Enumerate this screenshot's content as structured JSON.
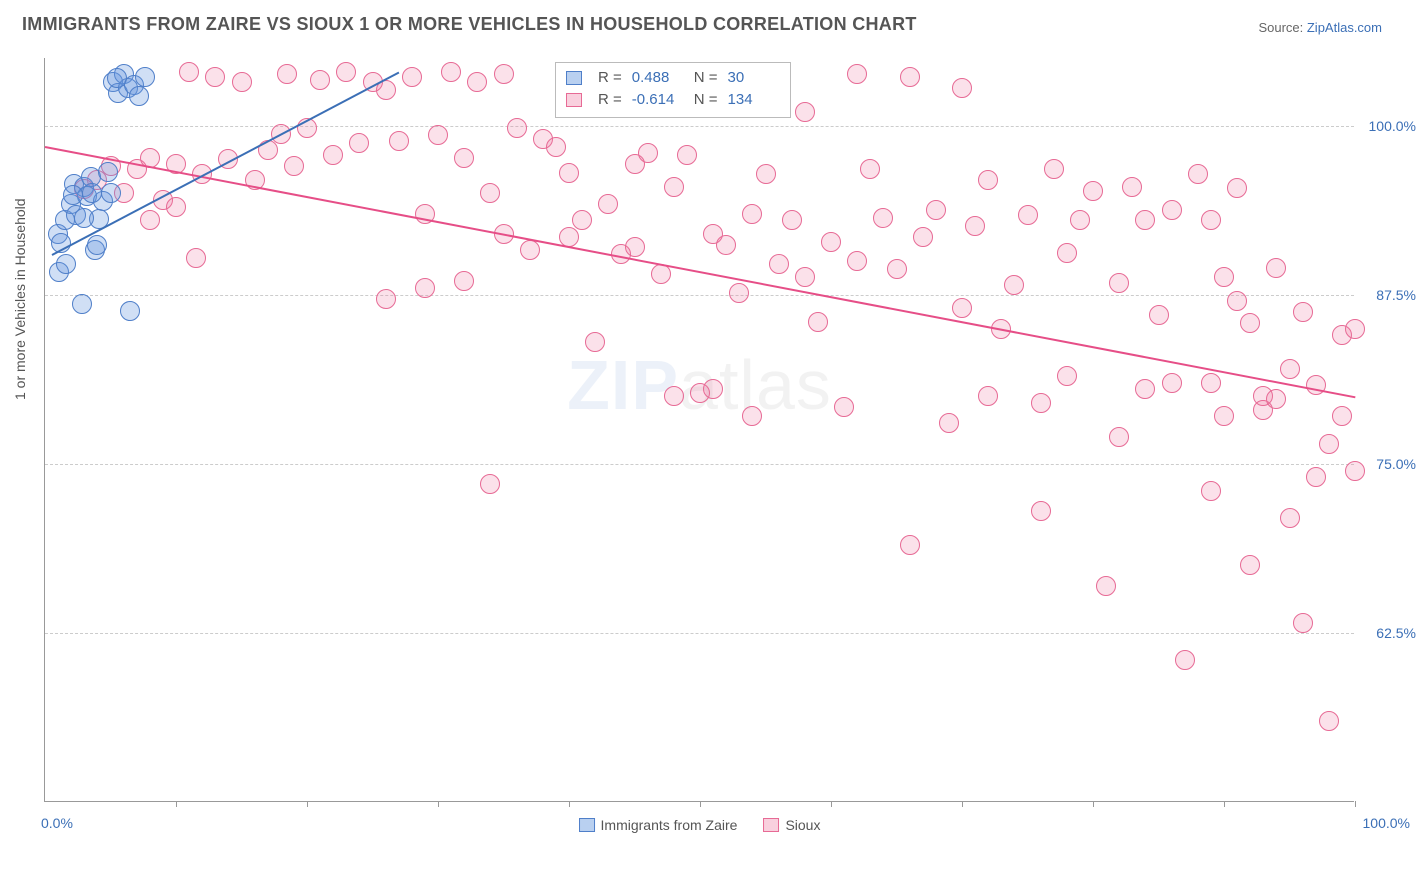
{
  "title": "IMMIGRANTS FROM ZAIRE VS SIOUX 1 OR MORE VEHICLES IN HOUSEHOLD CORRELATION CHART",
  "source": {
    "label": "Source: ",
    "site": "ZipAtlas.com"
  },
  "watermark": {
    "part1": "ZIP",
    "part2": "atlas"
  },
  "chart": {
    "type": "scatter",
    "xlim": [
      0,
      100
    ],
    "ylim": [
      50,
      105
    ],
    "x_axis_min_label": "0.0%",
    "x_axis_max_label": "100.0%",
    "y_ticks": [
      {
        "v": 62.5,
        "label": "62.5%"
      },
      {
        "v": 75.0,
        "label": "75.0%"
      },
      {
        "v": 87.5,
        "label": "87.5%"
      },
      {
        "v": 100.0,
        "label": "100.0%"
      }
    ],
    "x_tick_positions": [
      10,
      20,
      30,
      40,
      50,
      60,
      70,
      80,
      90,
      100
    ],
    "y_axis_label": "1 or more Vehicles in Household",
    "grid_color": "#cccccc",
    "background_color": "#ffffff",
    "series": {
      "a": {
        "name": "Immigrants from Zaire",
        "fill": "rgba(100,150,221,0.30)",
        "stroke": "#4f7fc9",
        "stats": {
          "R": "0.488",
          "N": "30"
        },
        "trend": {
          "x1": 0.5,
          "y1": 90.5,
          "x2": 27,
          "y2": 104,
          "color": "#3b6fb6"
        },
        "points": [
          [
            1,
            92
          ],
          [
            1.2,
            91.3
          ],
          [
            1.5,
            93
          ],
          [
            2,
            94.2
          ],
          [
            2.2,
            95.7
          ],
          [
            2.4,
            93.4
          ],
          [
            3,
            95.5
          ],
          [
            3.2,
            94.8
          ],
          [
            3.5,
            96.2
          ],
          [
            3.8,
            90.8
          ],
          [
            4,
            91.2
          ],
          [
            4.4,
            94.4
          ],
          [
            4.8,
            96.6
          ],
          [
            5.2,
            103.2
          ],
          [
            5.6,
            102.4
          ],
          [
            6,
            103.8
          ],
          [
            6.3,
            102.8
          ],
          [
            6.5,
            86.3
          ],
          [
            2.8,
            86.8
          ],
          [
            1.1,
            89.2
          ],
          [
            1.6,
            89.8
          ],
          [
            2.1,
            94.9
          ],
          [
            4.1,
            93.1
          ],
          [
            5.0,
            95.0
          ],
          [
            5.5,
            103.5
          ],
          [
            6.8,
            103.0
          ],
          [
            7.2,
            102.2
          ],
          [
            7.6,
            103.6
          ],
          [
            3.0,
            93.2
          ],
          [
            3.6,
            95.0
          ]
        ]
      },
      "b": {
        "name": "Sioux",
        "fill": "rgba(238,120,160,0.22)",
        "stroke": "#e76a95",
        "stats": {
          "R": "-0.614",
          "N": "134"
        },
        "trend": {
          "x1": 0,
          "y1": 98.5,
          "x2": 100,
          "y2": 80.0,
          "color": "#e64e87"
        },
        "points": [
          [
            3,
            95.3
          ],
          [
            4,
            96.0
          ],
          [
            5,
            97.0
          ],
          [
            6,
            95.0
          ],
          [
            7,
            96.8
          ],
          [
            8,
            97.6
          ],
          [
            9,
            94.5
          ],
          [
            10,
            97.2
          ],
          [
            11,
            104
          ],
          [
            11.5,
            90.2
          ],
          [
            12,
            96.4
          ],
          [
            13,
            103.6
          ],
          [
            14,
            97.5
          ],
          [
            15,
            103.2
          ],
          [
            16,
            96.0
          ],
          [
            17,
            98.2
          ],
          [
            18,
            99.4
          ],
          [
            18.5,
            103.8
          ],
          [
            19,
            97.0
          ],
          [
            20,
            99.8
          ],
          [
            21,
            103.4
          ],
          [
            22,
            97.8
          ],
          [
            23,
            104
          ],
          [
            24,
            98.7
          ],
          [
            25,
            103.2
          ],
          [
            26,
            102.6
          ],
          [
            27,
            98.9
          ],
          [
            26,
            87.2
          ],
          [
            28,
            103.6
          ],
          [
            29,
            88.0
          ],
          [
            30,
            99.3
          ],
          [
            31,
            104
          ],
          [
            32,
            97.6
          ],
          [
            33,
            103.2
          ],
          [
            34,
            95.0
          ],
          [
            35,
            103.8
          ],
          [
            36,
            99.8
          ],
          [
            37,
            90.8
          ],
          [
            34,
            73.5
          ],
          [
            38,
            99.0
          ],
          [
            39,
            98.4
          ],
          [
            40,
            91.8
          ],
          [
            41,
            93.0
          ],
          [
            42,
            84.0
          ],
          [
            43,
            94.2
          ],
          [
            44,
            90.5
          ],
          [
            45,
            97.2
          ],
          [
            46,
            98.0
          ],
          [
            47,
            89.0
          ],
          [
            48,
            95.5
          ],
          [
            49,
            97.8
          ],
          [
            50,
            80.2
          ],
          [
            51,
            92.0
          ],
          [
            52,
            91.2
          ],
          [
            53,
            87.6
          ],
          [
            54,
            78.5
          ],
          [
            55,
            96.4
          ],
          [
            56,
            89.8
          ],
          [
            57,
            93.0
          ],
          [
            58,
            88.8
          ],
          [
            59,
            85.5
          ],
          [
            60,
            91.4
          ],
          [
            61,
            79.2
          ],
          [
            62,
            90.0
          ],
          [
            63,
            96.8
          ],
          [
            64,
            93.2
          ],
          [
            65,
            89.4
          ],
          [
            66,
            69.0
          ],
          [
            66,
            103.6
          ],
          [
            67,
            91.8
          ],
          [
            68,
            93.8
          ],
          [
            69,
            78.0
          ],
          [
            70,
            86.5
          ],
          [
            71,
            92.6
          ],
          [
            72,
            80.0
          ],
          [
            73,
            85.0
          ],
          [
            74,
            88.2
          ],
          [
            75,
            93.4
          ],
          [
            76,
            79.5
          ],
          [
            76,
            71.5
          ],
          [
            77,
            96.8
          ],
          [
            78,
            90.6
          ],
          [
            79,
            93.0
          ],
          [
            80,
            95.2
          ],
          [
            81,
            66.0
          ],
          [
            82,
            88.4
          ],
          [
            82,
            77.0
          ],
          [
            83,
            95.5
          ],
          [
            84,
            80.5
          ],
          [
            85,
            86.0
          ],
          [
            86,
            93.8
          ],
          [
            87,
            60.5
          ],
          [
            88,
            96.4
          ],
          [
            89,
            81.0
          ],
          [
            89,
            73.0
          ],
          [
            90,
            78.5
          ],
          [
            90,
            88.8
          ],
          [
            91,
            87.0
          ],
          [
            92,
            85.4
          ],
          [
            92,
            67.5
          ],
          [
            93,
            80.0
          ],
          [
            93,
            79.0
          ],
          [
            94,
            79.8
          ],
          [
            94,
            89.5
          ],
          [
            95,
            82.0
          ],
          [
            95,
            71.0
          ],
          [
            96,
            86.2
          ],
          [
            96,
            63.2
          ],
          [
            97,
            80.8
          ],
          [
            97,
            74.0
          ],
          [
            98,
            56.0
          ],
          [
            98,
            76.5
          ],
          [
            99,
            84.5
          ],
          [
            99,
            78.5
          ],
          [
            100,
            74.5
          ],
          [
            100,
            85.0
          ],
          [
            89,
            93.0
          ],
          [
            91,
            95.4
          ],
          [
            84,
            93.0
          ],
          [
            86,
            81.0
          ],
          [
            78,
            81.5
          ],
          [
            72,
            96.0
          ],
          [
            70,
            102.8
          ],
          [
            62,
            103.8
          ],
          [
            58,
            101.0
          ],
          [
            54,
            93.5
          ],
          [
            51,
            80.5
          ],
          [
            48,
            80.0
          ],
          [
            45,
            91.0
          ],
          [
            40,
            96.5
          ],
          [
            35,
            92.0
          ],
          [
            32,
            88.5
          ],
          [
            29,
            93.5
          ],
          [
            10,
            94.0
          ],
          [
            8,
            93.0
          ]
        ]
      }
    },
    "legend_bottom": [
      {
        "swatch_fill": "rgba(100,150,221,0.45)",
        "swatch_stroke": "#4f7fc9",
        "label_key": "chart.series.a.name"
      },
      {
        "swatch_fill": "rgba(238,120,160,0.35)",
        "swatch_stroke": "#e76a95",
        "label_key": "chart.series.b.name"
      }
    ]
  }
}
